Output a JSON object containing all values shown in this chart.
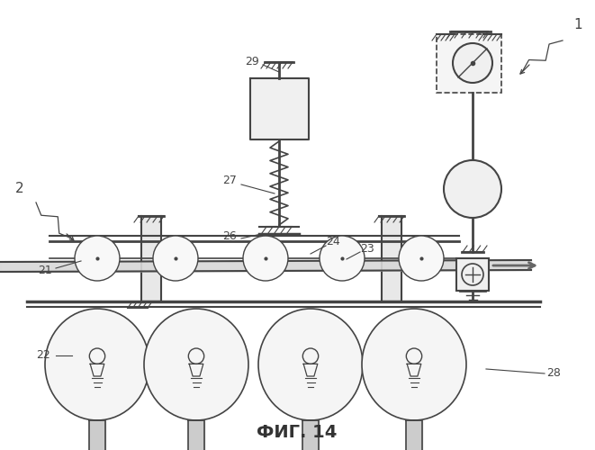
{
  "title": "ФИГ. 14",
  "bg_color": "#ffffff",
  "lc": "#444444",
  "figsize": [
    6.61,
    5.0
  ],
  "dpi": 100
}
